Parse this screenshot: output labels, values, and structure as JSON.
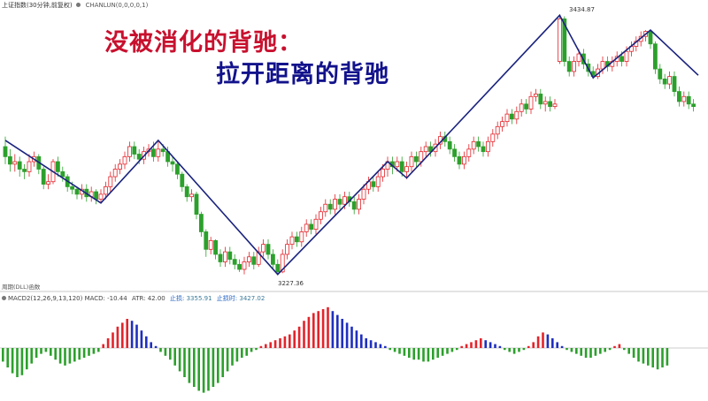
{
  "header": {
    "symbol": "上证指数(30分钟,前复权)",
    "indicator": "CHANLUN(0,0,0,0,1)",
    "left_caption": "周期(DLL)函数"
  },
  "macd_header": {
    "label": "MACD2(12,26,9,13,120)",
    "macd": "MACD: -10.44",
    "atr": "ATR: 42.00",
    "val1_label": "止损:",
    "val1": "3355.91",
    "val2_label": "止损时:",
    "val2": "3427.02"
  },
  "annotations": {
    "line1": "没被消化的背驰：",
    "line2": "拉开距离的背驰"
  },
  "price_labels": {
    "high": "3434.87",
    "low": "3227.36"
  },
  "colors": {
    "up": "#e3242b",
    "down": "#2ca02c",
    "stroke_line": "#1a237e",
    "macd_red": "#e3242b",
    "macd_blue": "#1f2fbf",
    "macd_green": "#2ca02c"
  },
  "chart_data": [
    {
      "type": "candlestick",
      "title": "",
      "y_range": [
        3220,
        3440
      ],
      "strokes": [
        {
          "bar": 0,
          "price": 3335
        },
        {
          "bar": 20,
          "price": 3285
        },
        {
          "bar": 32,
          "price": 3335
        },
        {
          "bar": 57,
          "price": 3228
        },
        {
          "bar": 80,
          "price": 3318
        },
        {
          "bar": 84,
          "price": 3305
        },
        {
          "bar": 116,
          "price": 3434.87
        },
        {
          "bar": 123,
          "price": 3385
        },
        {
          "bar": 135,
          "price": 3423
        },
        {
          "bar": 145,
          "price": 3387
        }
      ],
      "candles": [
        [
          3330,
          3322,
          3338,
          3316
        ],
        [
          3322,
          3316,
          3328,
          3310
        ],
        [
          3316,
          3318,
          3324,
          3310
        ],
        [
          3318,
          3312,
          3322,
          3306
        ],
        [
          3312,
          3310,
          3316,
          3304
        ],
        [
          3310,
          3318,
          3324,
          3306
        ],
        [
          3318,
          3322,
          3326,
          3314
        ],
        [
          3322,
          3312,
          3324,
          3308
        ],
        [
          3312,
          3300,
          3314,
          3296
        ],
        [
          3300,
          3302,
          3308,
          3296
        ],
        [
          3302,
          3318,
          3320,
          3300
        ],
        [
          3318,
          3310,
          3322,
          3306
        ],
        [
          3310,
          3306,
          3314,
          3302
        ],
        [
          3306,
          3298,
          3308,
          3294
        ],
        [
          3298,
          3296,
          3302,
          3292
        ],
        [
          3296,
          3292,
          3298,
          3288
        ],
        [
          3292,
          3296,
          3300,
          3288
        ],
        [
          3296,
          3290,
          3300,
          3286
        ],
        [
          3290,
          3294,
          3298,
          3286
        ],
        [
          3294,
          3288,
          3296,
          3284
        ],
        [
          3288,
          3292,
          3296,
          3285
        ],
        [
          3292,
          3298,
          3302,
          3288
        ],
        [
          3298,
          3306,
          3310,
          3294
        ],
        [
          3306,
          3312,
          3316,
          3302
        ],
        [
          3312,
          3316,
          3320,
          3308
        ],
        [
          3316,
          3322,
          3326,
          3312
        ],
        [
          3322,
          3330,
          3334,
          3318
        ],
        [
          3330,
          3324,
          3334,
          3320
        ],
        [
          3324,
          3320,
          3328,
          3316
        ],
        [
          3320,
          3326,
          3330,
          3316
        ],
        [
          3326,
          3328,
          3332,
          3322
        ],
        [
          3328,
          3322,
          3334,
          3318
        ],
        [
          3322,
          3328,
          3334,
          3318
        ],
        [
          3328,
          3326,
          3332,
          3322
        ],
        [
          3326,
          3318,
          3330,
          3314
        ],
        [
          3318,
          3316,
          3322,
          3310
        ],
        [
          3316,
          3308,
          3318,
          3304
        ],
        [
          3308,
          3298,
          3310,
          3294
        ],
        [
          3298,
          3290,
          3300,
          3286
        ],
        [
          3290,
          3292,
          3296,
          3286
        ],
        [
          3292,
          3276,
          3294,
          3272
        ],
        [
          3276,
          3262,
          3278,
          3258
        ],
        [
          3262,
          3248,
          3264,
          3242
        ],
        [
          3248,
          3255,
          3258,
          3244
        ],
        [
          3255,
          3244,
          3256,
          3240
        ],
        [
          3244,
          3238,
          3248,
          3234
        ],
        [
          3238,
          3246,
          3250,
          3234
        ],
        [
          3246,
          3240,
          3250,
          3236
        ],
        [
          3240,
          3236,
          3244,
          3232
        ],
        [
          3236,
          3232,
          3240,
          3230
        ],
        [
          3232,
          3238,
          3242,
          3228
        ],
        [
          3238,
          3242,
          3246,
          3234
        ],
        [
          3242,
          3236,
          3246,
          3232
        ],
        [
          3236,
          3246,
          3250,
          3234
        ],
        [
          3246,
          3252,
          3256,
          3242
        ],
        [
          3252,
          3244,
          3256,
          3240
        ],
        [
          3244,
          3236,
          3248,
          3232
        ],
        [
          3236,
          3230,
          3240,
          3227.36
        ],
        [
          3230,
          3244,
          3248,
          3229
        ],
        [
          3244,
          3252,
          3256,
          3240
        ],
        [
          3252,
          3258,
          3262,
          3248
        ],
        [
          3258,
          3254,
          3262,
          3250
        ],
        [
          3254,
          3262,
          3266,
          3250
        ],
        [
          3262,
          3268,
          3272,
          3258
        ],
        [
          3268,
          3264,
          3272,
          3260
        ],
        [
          3264,
          3272,
          3276,
          3260
        ],
        [
          3272,
          3278,
          3282,
          3268
        ],
        [
          3278,
          3284,
          3288,
          3274
        ],
        [
          3284,
          3280,
          3288,
          3276
        ],
        [
          3280,
          3288,
          3292,
          3276
        ],
        [
          3288,
          3284,
          3292,
          3280
        ],
        [
          3284,
          3290,
          3294,
          3280
        ],
        [
          3290,
          3286,
          3294,
          3282
        ],
        [
          3286,
          3280,
          3290,
          3276
        ],
        [
          3280,
          3288,
          3292,
          3276
        ],
        [
          3288,
          3296,
          3300,
          3284
        ],
        [
          3296,
          3302,
          3306,
          3292
        ],
        [
          3302,
          3298,
          3306,
          3294
        ],
        [
          3298,
          3306,
          3310,
          3294
        ],
        [
          3306,
          3312,
          3316,
          3302
        ],
        [
          3312,
          3318,
          3322,
          3306
        ],
        [
          3318,
          3314,
          3322,
          3308
        ],
        [
          3314,
          3318,
          3322,
          3310
        ],
        [
          3318,
          3310,
          3322,
          3306
        ],
        [
          3310,
          3314,
          3318,
          3304
        ],
        [
          3314,
          3322,
          3326,
          3310
        ],
        [
          3322,
          3318,
          3326,
          3314
        ],
        [
          3318,
          3326,
          3330,
          3314
        ],
        [
          3326,
          3330,
          3334,
          3322
        ],
        [
          3330,
          3326,
          3334,
          3322
        ],
        [
          3326,
          3332,
          3336,
          3322
        ],
        [
          3332,
          3338,
          3342,
          3328
        ],
        [
          3338,
          3334,
          3342,
          3330
        ],
        [
          3334,
          3328,
          3338,
          3324
        ],
        [
          3328,
          3322,
          3332,
          3318
        ],
        [
          3322,
          3316,
          3326,
          3312
        ],
        [
          3316,
          3322,
          3326,
          3312
        ],
        [
          3322,
          3328,
          3332,
          3318
        ],
        [
          3328,
          3334,
          3338,
          3324
        ],
        [
          3334,
          3330,
          3338,
          3326
        ],
        [
          3330,
          3326,
          3334,
          3322
        ],
        [
          3326,
          3334,
          3338,
          3322
        ],
        [
          3334,
          3340,
          3344,
          3330
        ],
        [
          3340,
          3346,
          3350,
          3336
        ],
        [
          3346,
          3350,
          3354,
          3342
        ],
        [
          3350,
          3356,
          3360,
          3346
        ],
        [
          3356,
          3352,
          3360,
          3348
        ],
        [
          3352,
          3358,
          3362,
          3348
        ],
        [
          3358,
          3364,
          3368,
          3354
        ],
        [
          3364,
          3360,
          3368,
          3356
        ],
        [
          3360,
          3370,
          3374,
          3356
        ],
        [
          3370,
          3372,
          3376,
          3366
        ],
        [
          3372,
          3364,
          3376,
          3360
        ],
        [
          3364,
          3366,
          3370,
          3358
        ],
        [
          3366,
          3362,
          3370,
          3358
        ],
        [
          3362,
          3364,
          3368,
          3360
        ],
        [
          3398,
          3432,
          3434.87,
          3396
        ],
        [
          3432,
          3398,
          3434,
          3394
        ],
        [
          3398,
          3390,
          3402,
          3386
        ],
        [
          3390,
          3398,
          3402,
          3386
        ],
        [
          3398,
          3404,
          3408,
          3394
        ],
        [
          3404,
          3396,
          3408,
          3392
        ],
        [
          3396,
          3390,
          3400,
          3386
        ],
        [
          3390,
          3386,
          3394,
          3384
        ],
        [
          3386,
          3392,
          3396,
          3384
        ],
        [
          3392,
          3398,
          3402,
          3388
        ],
        [
          3398,
          3394,
          3402,
          3390
        ],
        [
          3394,
          3398,
          3402,
          3390
        ],
        [
          3398,
          3402,
          3406,
          3394
        ],
        [
          3402,
          3398,
          3406,
          3394
        ],
        [
          3398,
          3406,
          3410,
          3394
        ],
        [
          3406,
          3410,
          3414,
          3402
        ],
        [
          3410,
          3414,
          3418,
          3406
        ],
        [
          3414,
          3418,
          3422,
          3410
        ],
        [
          3418,
          3422,
          3423,
          3414
        ],
        [
          3422,
          3412,
          3423,
          3408
        ],
        [
          3412,
          3392,
          3414,
          3388
        ],
        [
          3392,
          3384,
          3396,
          3380
        ],
        [
          3384,
          3380,
          3388,
          3376
        ],
        [
          3380,
          3386,
          3390,
          3376
        ],
        [
          3386,
          3374,
          3390,
          3370
        ],
        [
          3374,
          3366,
          3378,
          3362
        ],
        [
          3366,
          3370,
          3374,
          3362
        ],
        [
          3370,
          3364,
          3374,
          3360
        ],
        [
          3364,
          3362,
          3368,
          3358
        ]
      ]
    },
    {
      "type": "bar",
      "title": "",
      "y_range": [
        -23,
        21
      ],
      "values": [
        -7,
        -10,
        -13,
        -15,
        -14,
        -11,
        -8,
        -5,
        -3,
        -2,
        -4,
        -6,
        -8,
        -9,
        -8,
        -7,
        -6,
        -5,
        -4,
        -3,
        -2,
        2,
        5,
        8,
        11,
        13,
        15,
        14,
        12,
        9,
        6,
        3,
        1,
        -2,
        -4,
        -6,
        -9,
        -12,
        -15,
        -18,
        -20,
        -22,
        -23,
        -22,
        -20,
        -18,
        -15,
        -12,
        -9,
        -7,
        -5,
        -4,
        -2,
        -1,
        1,
        2,
        3,
        4,
        5,
        6,
        7,
        9,
        11,
        14,
        16,
        18,
        19,
        20,
        21,
        19,
        17,
        15,
        13,
        11,
        9,
        7,
        5,
        4,
        3,
        2,
        1,
        -1,
        -2,
        -3,
        -4,
        -5,
        -6,
        -6,
        -7,
        -7,
        -6,
        -5,
        -4,
        -3,
        -2,
        -1,
        1,
        2,
        3,
        4,
        5,
        4,
        3,
        2,
        1,
        -1,
        -2,
        -3,
        -2,
        -1,
        1,
        3,
        6,
        8,
        7,
        5,
        3,
        1,
        -1,
        -2,
        -3,
        -4,
        -5,
        -5,
        -4,
        -3,
        -2,
        -1,
        1,
        2,
        -1,
        -3,
        -5,
        -7,
        -8,
        -9,
        -10,
        -11,
        -10,
        -9
      ],
      "colors_by_phase": "red when rising above zero, blue when falling, green below zero"
    }
  ]
}
